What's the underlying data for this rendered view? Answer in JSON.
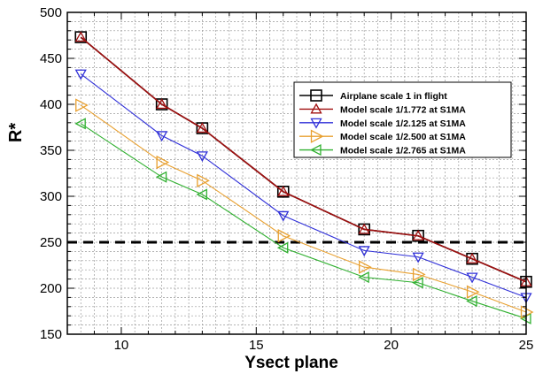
{
  "chart_data": {
    "type": "line",
    "xlabel": "Ysect plane",
    "ylabel": "R*",
    "xlim": [
      8,
      25
    ],
    "ylim": [
      150,
      500
    ],
    "x_ticks": [
      10,
      15,
      20,
      25
    ],
    "y_ticks": [
      150,
      200,
      250,
      300,
      350,
      400,
      450,
      500
    ],
    "grid": true,
    "legend_position": "top-right",
    "reference_line": {
      "y": 250,
      "style": "dashed",
      "color": "#000000"
    },
    "x": [
      8.5,
      11.5,
      13,
      16,
      19,
      21,
      23,
      25
    ],
    "series": [
      {
        "name": "Airplane scale 1 in flight",
        "color": "#000000",
        "marker": "square",
        "values": [
          473,
          400,
          374,
          305,
          264,
          257,
          232,
          207
        ]
      },
      {
        "name": "Model scale 1/1.772 at S1MA",
        "color": "#a01010",
        "marker": "triangle-up",
        "values": [
          473,
          400,
          374,
          305,
          264,
          257,
          232,
          207
        ]
      },
      {
        "name": "Model scale 1/2.125 at S1MA",
        "color": "#3030d8",
        "marker": "triangle-down",
        "values": [
          433,
          366,
          344,
          279,
          241,
          234,
          212,
          190
        ]
      },
      {
        "name": "Model scale 1/2.500 at S1MA",
        "color": "#e8a030",
        "marker": "triangle-right",
        "values": [
          399,
          337,
          317,
          257,
          223,
          215,
          196,
          174
        ]
      },
      {
        "name": "Model scale 1/2.765 at S1MA",
        "color": "#30b030",
        "marker": "triangle-left",
        "values": [
          379,
          321,
          302,
          244,
          212,
          206,
          186,
          167
        ]
      }
    ]
  }
}
